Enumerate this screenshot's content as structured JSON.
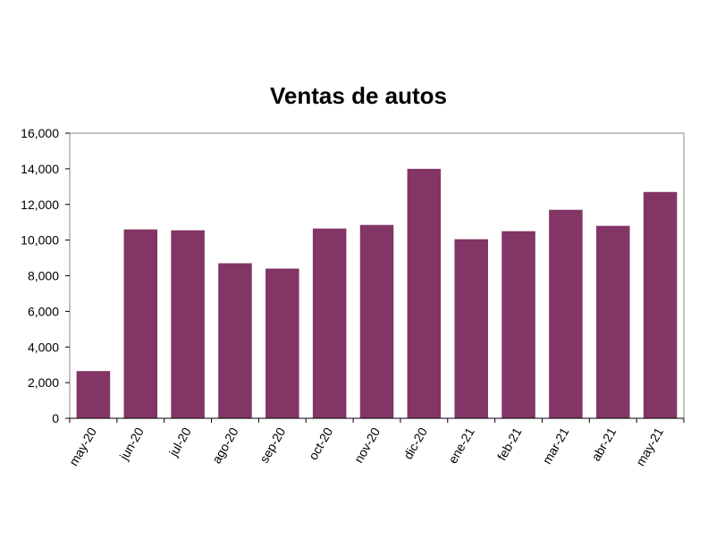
{
  "chart_data": {
    "type": "bar",
    "title": "Ventas de autos",
    "xlabel": "",
    "ylabel": "",
    "categories": [
      "may-20",
      "jun-20",
      "jul-20",
      "ago-20",
      "sep-20",
      "oct-20",
      "nov-20",
      "dic-20",
      "ene-21",
      "feb-21",
      "mar-21",
      "abr-21",
      "may-21"
    ],
    "values": [
      2650,
      10600,
      10550,
      8700,
      8400,
      10650,
      10850,
      14000,
      10050,
      10500,
      11700,
      10800,
      12700
    ],
    "ylim": [
      0,
      16000
    ],
    "yticks": [
      0,
      2000,
      4000,
      6000,
      8000,
      10000,
      12000,
      14000,
      16000
    ],
    "ytick_labels": [
      "0",
      "2,000",
      "4,000",
      "6,000",
      "8,000",
      "10,000",
      "12,000",
      "14,000",
      "16,000"
    ],
    "grid": false,
    "legend": "none",
    "bar_color": "#833566"
  }
}
